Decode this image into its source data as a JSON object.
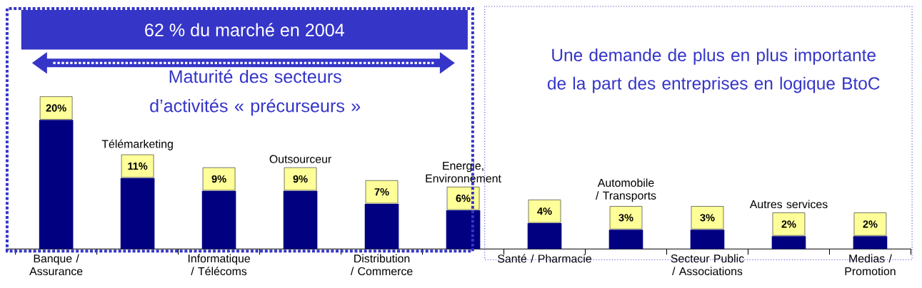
{
  "chart_data": {
    "type": "bar",
    "categories": [
      "Banque / Assurance",
      "Télémarketing",
      "Informatique / Télécoms",
      "Outsourceur",
      "Distribution / Commerce",
      "Energie, Environnement",
      "Santé / Pharmacie",
      "Automobile / Transports",
      "Secteur Public / Associations",
      "Autres services",
      "Medias / Promotion"
    ],
    "values": [
      20,
      11,
      9,
      9,
      7,
      6,
      4,
      3,
      3,
      2,
      2
    ],
    "value_labels": [
      "20%",
      "11%",
      "9%",
      "9%",
      "7%",
      "6%",
      "4%",
      "3%",
      "3%",
      "2%",
      "2%"
    ],
    "color": "#000080",
    "annotations": [
      "62 % du marché en 2004",
      "Maturité des secteurs d’activités « précurseurs »",
      "Une demande de plus en plus importante de la part des entreprises en logique BtoC"
    ]
  }
}
